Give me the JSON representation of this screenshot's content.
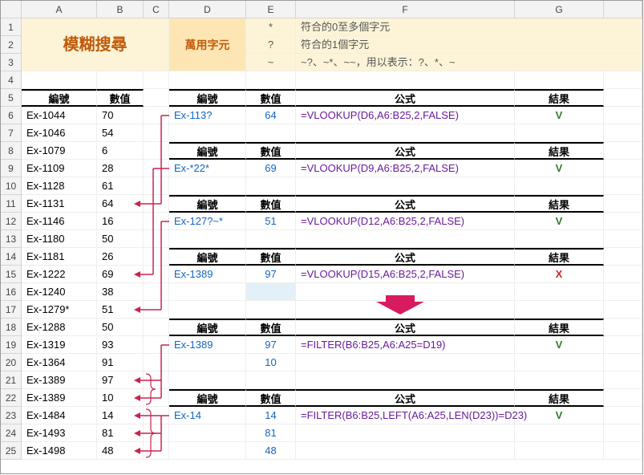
{
  "columns": [
    "",
    "A",
    "B",
    "C",
    "D",
    "E",
    "F",
    "G",
    ""
  ],
  "rowNums": [
    "1",
    "2",
    "3",
    "4",
    "5",
    "6",
    "7",
    "8",
    "9",
    "10",
    "11",
    "12",
    "13",
    "14",
    "15",
    "16",
    "17",
    "18",
    "19",
    "20",
    "21",
    "22",
    "23",
    "24",
    "25"
  ],
  "banner": {
    "title": "模糊搜尋",
    "subtitle": "萬用字元",
    "wild": [
      {
        "ch": "*",
        "desc": "符合的0至多個字元"
      },
      {
        "ch": "?",
        "desc": "符合的1個字元"
      },
      {
        "ch": "~",
        "desc": "~?、~*、~~，用以表示：?、*、~"
      }
    ]
  },
  "leftHeader": {
    "id": "編號",
    "val": "數值"
  },
  "left": [
    {
      "id": "Ex-1044",
      "val": "70"
    },
    {
      "id": "Ex-1046",
      "val": "54"
    },
    {
      "id": "Ex-1079",
      "val": "6"
    },
    {
      "id": "Ex-1109",
      "val": "28"
    },
    {
      "id": "Ex-1128",
      "val": "61"
    },
    {
      "id": "Ex-1131",
      "val": "64"
    },
    {
      "id": "Ex-1146",
      "val": "16"
    },
    {
      "id": "Ex-1180",
      "val": "50"
    },
    {
      "id": "Ex-1181",
      "val": "26"
    },
    {
      "id": "Ex-1222",
      "val": "69"
    },
    {
      "id": "Ex-1240",
      "val": "38"
    },
    {
      "id": "Ex-1279*",
      "val": "51"
    },
    {
      "id": "Ex-1288",
      "val": "50"
    },
    {
      "id": "Ex-1319",
      "val": "93"
    },
    {
      "id": "Ex-1364",
      "val": "91"
    },
    {
      "id": "Ex-1389",
      "val": "97"
    },
    {
      "id": "Ex-1389",
      "val": "10"
    },
    {
      "id": "Ex-1484",
      "val": "14"
    },
    {
      "id": "Ex-1493",
      "val": "81"
    },
    {
      "id": "Ex-1498",
      "val": "48"
    }
  ],
  "sectHdr": {
    "id": "編號",
    "val": "數值",
    "formula": "公式",
    "res": "結果"
  },
  "sections": [
    {
      "row": 6,
      "id": "Ex-113?",
      "val": "64",
      "formula": "=VLOOKUP(D6,A6:B25,2,FALSE)",
      "res": "V",
      "ok": true
    },
    {
      "row": 9,
      "id": "Ex-*22*",
      "val": "69",
      "formula": "=VLOOKUP(D9,A6:B25,2,FALSE)",
      "res": "V",
      "ok": true
    },
    {
      "row": 12,
      "id": "Ex-127?~*",
      "val": "51",
      "formula": "=VLOOKUP(D12,A6:B25,2,FALSE)",
      "res": "V",
      "ok": true
    },
    {
      "row": 15,
      "id": "Ex-1389",
      "val": "97",
      "formula": "=VLOOKUP(D15,A6:B25,2,FALSE)",
      "res": "X",
      "ok": false
    }
  ],
  "filterSections": [
    {
      "row": 19,
      "id": "Ex-1389",
      "vals": [
        "97",
        "10"
      ],
      "formula": "=FILTER(B6:B25,A6:A25=D19)",
      "res": "V"
    },
    {
      "row": 23,
      "id": "Ex-14",
      "vals": [
        "14",
        "81",
        "48"
      ],
      "formula": "=FILTER(B6:B25,LEFT(A6:A25,LEN(D23))=D23)",
      "res": "V"
    }
  ],
  "colors": {
    "arrow": "#c7254e",
    "arrowFill": "#d81b60"
  }
}
